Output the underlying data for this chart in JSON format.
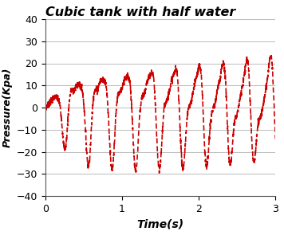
{
  "title": "Cubic tank with half water",
  "xlabel": "Time(s)",
  "ylabel": "Pressure(Kpa)",
  "xlim": [
    0,
    3
  ],
  "ylim": [
    -40,
    40
  ],
  "xticks": [
    0,
    1,
    2,
    3
  ],
  "yticks": [
    -40,
    -30,
    -20,
    -10,
    0,
    10,
    20,
    30,
    40
  ],
  "line_color": "#cc0000",
  "line_style": "--",
  "line_width": 1.2,
  "title_fontsize": 11.5,
  "title_style": "italic",
  "title_weight": "bold",
  "xlabel_fontsize": 10,
  "ylabel_fontsize": 9,
  "tick_fontsize": 9,
  "background_color": "#ffffff",
  "grid_color": "#aaaaaa",
  "grid_alpha": 0.8,
  "seed": 7,
  "num_points": 2000,
  "time_end": 3.0
}
